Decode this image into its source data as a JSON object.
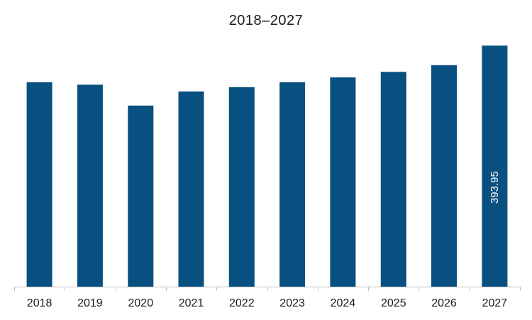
{
  "chart_data": {
    "type": "bar",
    "title": "2018–2027",
    "categories": [
      "2018",
      "2019",
      "2020",
      "2021",
      "2022",
      "2023",
      "2024",
      "2025",
      "2026",
      "2027"
    ],
    "values": [
      334,
      330,
      296,
      319,
      326,
      334,
      342,
      351,
      362,
      393.95
    ],
    "data_labels": [
      {
        "index": 9,
        "text": "393.95"
      }
    ],
    "xlabel": "",
    "ylabel": "",
    "ylim": [
      0,
      414
    ],
    "grid": false,
    "legend": "none",
    "colors": {
      "bar": "#08507f",
      "axis": "#bfbfbf",
      "text": "#1a1a1a",
      "label": "#ffffff"
    }
  }
}
